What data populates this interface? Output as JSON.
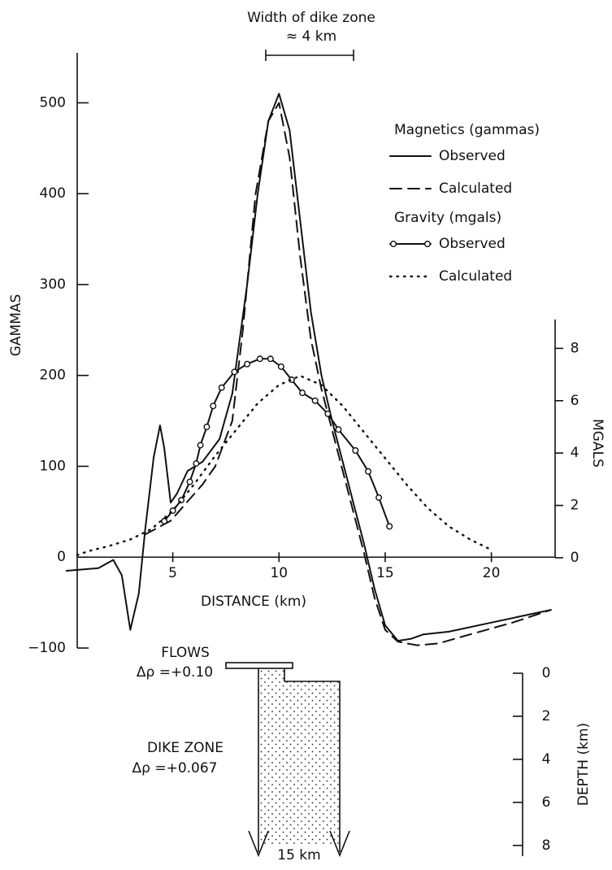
{
  "chart_data": {
    "type": "line",
    "annotations": [
      "Width of dike zone",
      "≈ 4 km"
    ],
    "xlabel": "DISTANCE (km)",
    "ylabel": "GAMMAS",
    "y2label": "MGALS",
    "xlim": [
      0.5,
      23
    ],
    "xticks": [
      5,
      10,
      15,
      20
    ],
    "ylim": [
      -100,
      555
    ],
    "yticks": [
      {
        "value": -100,
        "label": "−100"
      },
      0,
      100,
      200,
      300,
      400,
      500
    ],
    "y2lim": [
      0,
      9.1
    ],
    "y2ticks": [
      0,
      2,
      4,
      6,
      8
    ],
    "series_groups": [
      {
        "name": "Magnetics (gammas)",
        "axis": "y",
        "series": [
          {
            "name": "Observed",
            "style": "solid",
            "color": "#111111",
            "x": [
              0,
              1.5,
              2.2,
              2.6,
              3.0,
              3.4,
              3.7,
              4.1,
              4.4,
              4.6,
              4.9,
              5.2,
              5.7,
              6.4,
              7.2,
              7.8,
              8.5,
              9.0,
              9.5,
              10.0,
              10.5,
              11,
              11.5,
              12,
              12.5,
              13,
              13.5,
              14,
              14.5,
              15,
              15.6,
              16.2,
              16.8,
              18,
              20,
              22,
              22.8
            ],
            "values": [
              -15,
              -12,
              -3,
              -20,
              -80,
              -40,
              30,
              110,
              145,
              120,
              60,
              70,
              95,
              105,
              130,
              180,
              300,
              400,
              480,
              510,
              470,
              370,
              270,
              200,
              150,
              105,
              60,
              15,
              -35,
              -75,
              -92,
              -90,
              -85,
              -82,
              -72,
              -62,
              -58
            ]
          },
          {
            "name": "Calculated",
            "style": "dashed",
            "color": "#111111",
            "x": [
              3.7,
              4.9,
              6.4,
              7.0,
              7.8,
              8.3,
              8.9,
              9.5,
              10.0,
              10.5,
              11,
              11.5,
              12,
              12.5,
              13,
              13.5,
              14,
              14.5,
              15,
              15.6,
              16.5,
              17.5,
              19,
              21,
              22.8
            ],
            "values": [
              25,
              40,
              80,
              100,
              150,
              250,
              400,
              480,
              500,
              440,
              330,
              240,
              185,
              140,
              95,
              50,
              5,
              -45,
              -80,
              -93,
              -97,
              -95,
              -85,
              -72,
              -58
            ]
          }
        ]
      },
      {
        "name": "Gravity (mgals)",
        "axis": "y2",
        "series": [
          {
            "name": "Observed",
            "style": "circles",
            "color": "#111111",
            "x": [
              4.6,
              5.0,
              5.4,
              5.8,
              6.1,
              6.3,
              6.6,
              6.9,
              7.3,
              7.9,
              8.5,
              9.1,
              9.6,
              10.1,
              10.6,
              11.1,
              11.7,
              12.3,
              12.8,
              13.6,
              14.2,
              14.7,
              15.2
            ],
            "values": [
              1.4,
              1.8,
              2.2,
              2.9,
              3.6,
              4.3,
              5.0,
              5.8,
              6.5,
              7.1,
              7.4,
              7.6,
              7.6,
              7.3,
              6.8,
              6.3,
              6.0,
              5.5,
              4.9,
              4.1,
              3.3,
              2.3,
              1.2
            ]
          },
          {
            "name": "Calculated",
            "style": "dotted",
            "color": "#111111",
            "x": [
              0.5,
              1,
              2,
              3,
              4,
              5,
              6,
              7,
              8,
              9,
              10,
              11,
              12,
              13,
              14,
              15,
              16,
              17,
              18,
              19,
              20
            ],
            "values": [
              0.1,
              0.25,
              0.45,
              0.7,
              1.1,
              1.8,
              2.8,
              3.9,
              4.9,
              5.9,
              6.6,
              6.95,
              6.6,
              5.8,
              4.8,
              3.8,
              2.8,
              1.9,
              1.2,
              0.7,
              0.3
            ]
          }
        ]
      }
    ]
  },
  "diagram": {
    "flows_label": "FLOWS",
    "flows_density": "Δρ =+0.10",
    "dike_label": "DIKE ZONE",
    "dike_density": "Δρ =+0.067",
    "dike_extent": "15 km",
    "depth_label": "DEPTH (km)",
    "depth_lim": [
      0,
      8.5
    ],
    "depth_ticks": [
      0,
      2,
      4,
      6,
      8
    ]
  }
}
